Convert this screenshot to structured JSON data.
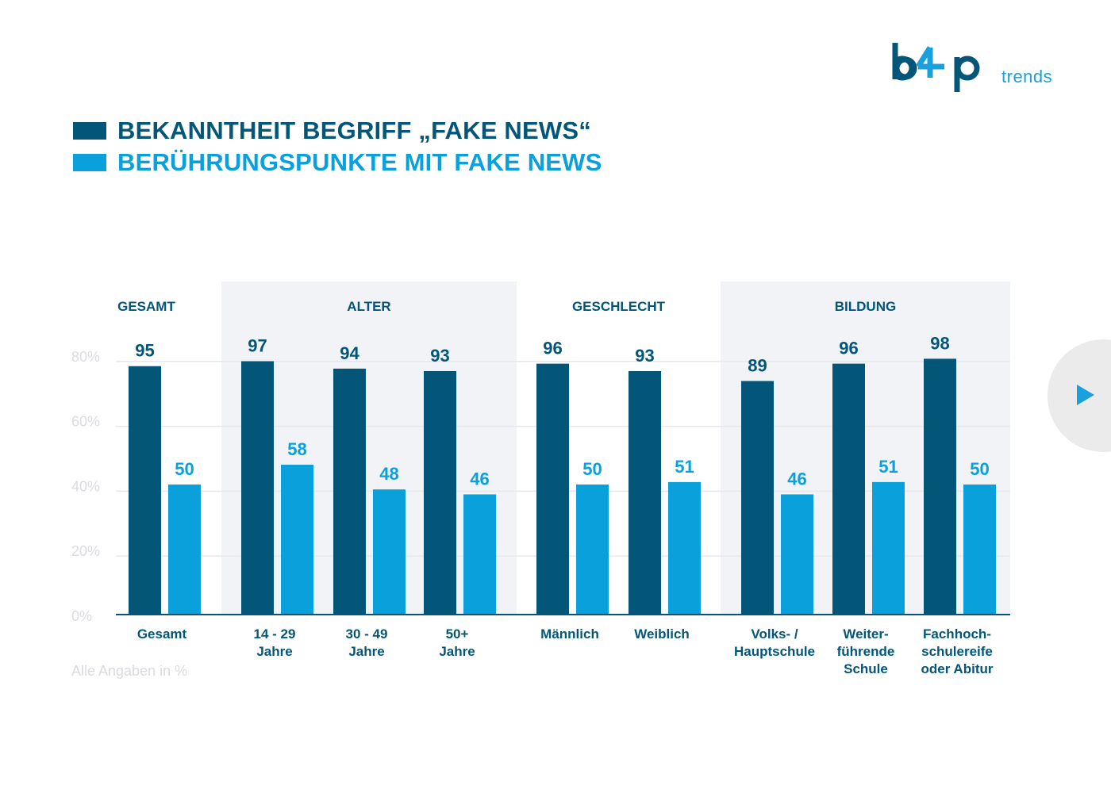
{
  "logo": {
    "mark": "b4p",
    "subtitle": "trends"
  },
  "legend": [
    {
      "label": "BEKANNTHEIT BEGRIFF „FAKE NEWS“",
      "color": "#045678"
    },
    {
      "label": "BERÜHRUNGSPUNKTE MIT FAKE NEWS",
      "color": "#0aa0dc"
    }
  ],
  "footnote": "Alle Angaben in %",
  "next_button": {
    "icon": "play-arrow-icon"
  },
  "chart_data": {
    "type": "bar",
    "y_tick_labels": [
      "0%",
      "20%",
      "40%",
      "60%",
      "80%"
    ],
    "y_ticks": [
      0,
      20,
      40,
      60,
      80
    ],
    "grid": true,
    "groups": [
      {
        "label": "GESAMT",
        "shaded": false,
        "categories": [
          0
        ]
      },
      {
        "label": "ALTER",
        "shaded": true,
        "categories": [
          1,
          2,
          3
        ]
      },
      {
        "label": "GESCHLECHT",
        "shaded": false,
        "categories": [
          4,
          5
        ]
      },
      {
        "label": "BILDUNG",
        "shaded": true,
        "categories": [
          6,
          7,
          8
        ]
      }
    ],
    "categories": [
      [
        "Gesamt"
      ],
      [
        "14 - 29",
        "Jahre"
      ],
      [
        "30 - 49",
        "Jahre"
      ],
      [
        "50+",
        "Jahre"
      ],
      [
        "Männlich"
      ],
      [
        "Weiblich"
      ],
      [
        "Volks- /",
        "Hauptschule"
      ],
      [
        "Weiter-",
        "führende",
        "Schule"
      ],
      [
        "Fachhoch-",
        "schulereife",
        "oder Abitur"
      ]
    ],
    "series": [
      {
        "name": "BEKANNTHEIT BEGRIFF „FAKE NEWS“",
        "color": "#045678",
        "values": [
          95,
          97,
          94,
          93,
          96,
          93,
          89,
          96,
          98
        ]
      },
      {
        "name": "BERÜHRUNGSPUNKTE MIT FAKE NEWS",
        "color": "#0aa0dc",
        "values": [
          50,
          58,
          48,
          46,
          50,
          51,
          46,
          51,
          50
        ]
      }
    ]
  }
}
